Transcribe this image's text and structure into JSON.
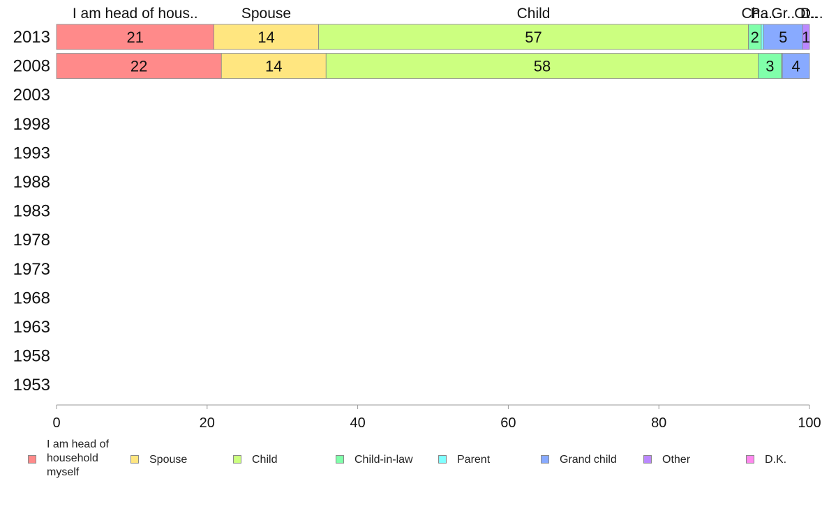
{
  "chart_data": {
    "type": "bar",
    "orientation": "horizontal",
    "stacked": true,
    "categories": [
      "2013",
      "2008",
      "2003",
      "1998",
      "1993",
      "1988",
      "1983",
      "1978",
      "1973",
      "1968",
      "1963",
      "1958",
      "1953"
    ],
    "series": [
      {
        "name": "I am head of household myself",
        "short_label": "I am head of hous..",
        "color": "#ff8a8a",
        "values": [
          20.9,
          21.9,
          null,
          null,
          null,
          null,
          null,
          null,
          null,
          null,
          null,
          null,
          null
        ],
        "labels": [
          "21",
          "22"
        ]
      },
      {
        "name": "Spouse",
        "short_label": "Spouse",
        "color": "#ffe680",
        "values": [
          13.9,
          13.9,
          null,
          null,
          null,
          null,
          null,
          null,
          null,
          null,
          null,
          null,
          null
        ],
        "labels": [
          "14",
          "14"
        ]
      },
      {
        "name": "Child",
        "short_label": "Child",
        "color": "#ccff80",
        "values": [
          57.1,
          57.4,
          null,
          null,
          null,
          null,
          null,
          null,
          null,
          null,
          null,
          null,
          null
        ],
        "labels": [
          "57",
          "58"
        ]
      },
      {
        "name": "Child-in-law",
        "short_label": "Ch..",
        "color": "#80ffaa",
        "values": [
          1.7,
          3.1,
          null,
          null,
          null,
          null,
          null,
          null,
          null,
          null,
          null,
          null,
          null
        ],
        "labels": [
          "2",
          "3"
        ]
      },
      {
        "name": "Parent",
        "short_label": "Pa..",
        "color": "#80ffff",
        "values": [
          0.3,
          0.1,
          null,
          null,
          null,
          null,
          null,
          null,
          null,
          null,
          null,
          null,
          null
        ],
        "labels": [
          "",
          ""
        ]
      },
      {
        "name": "Grand child",
        "short_label": "Gr..",
        "color": "#88aaff",
        "values": [
          5.2,
          3.6,
          null,
          null,
          null,
          null,
          null,
          null,
          null,
          null,
          null,
          null,
          null
        ],
        "labels": [
          "5",
          "4"
        ]
      },
      {
        "name": "Other",
        "short_label": "Ot..",
        "color": "#bb88ff",
        "values": [
          0.9,
          0.0,
          null,
          null,
          null,
          null,
          null,
          null,
          null,
          null,
          null,
          null,
          null
        ],
        "labels": [
          "1",
          ""
        ]
      },
      {
        "name": "D.K.",
        "short_label": "D...",
        "color": "#ff88ee",
        "values": [
          0.0,
          0.0,
          null,
          null,
          null,
          null,
          null,
          null,
          null,
          null,
          null,
          null,
          null
        ],
        "labels": [
          "",
          ""
        ]
      }
    ],
    "xlim": [
      0,
      100
    ],
    "xticks": [
      0,
      20,
      40,
      60,
      80,
      100
    ],
    "title": "",
    "xlabel": "",
    "ylabel": "",
    "grid": false,
    "legend": "bottom"
  },
  "legend_items": [
    {
      "label_lines": [
        "I am head of",
        "household",
        "myself"
      ],
      "color": "#ff8a8a"
    },
    {
      "label_lines": [
        "Spouse"
      ],
      "color": "#ffe680"
    },
    {
      "label_lines": [
        "Child"
      ],
      "color": "#ccff80"
    },
    {
      "label_lines": [
        "Child-in-law"
      ],
      "color": "#80ffaa"
    },
    {
      "label_lines": [
        "Parent"
      ],
      "color": "#80ffff"
    },
    {
      "label_lines": [
        "Grand child"
      ],
      "color": "#88aaff"
    },
    {
      "label_lines": [
        "Other"
      ],
      "color": "#bb88ff"
    },
    {
      "label_lines": [
        "D.K."
      ],
      "color": "#ff88ee"
    }
  ]
}
